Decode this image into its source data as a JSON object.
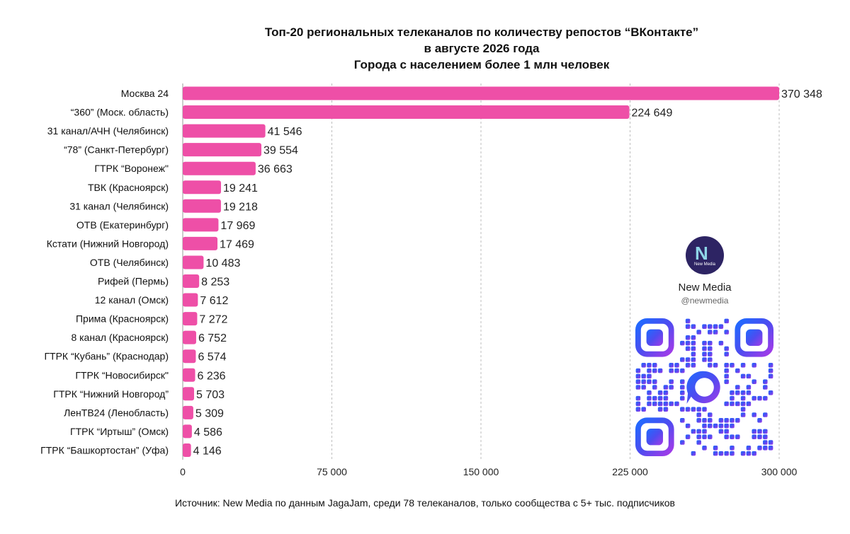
{
  "title_lines": [
    "Топ-20 региональных телеканалов по количеству репостов “ВКонтакте”",
    "в августе 2026 года",
    "Города с населением более 1 млн человек"
  ],
  "source": "Источник: New Media по данным JagaJam, среди 78 телеканалов, только сообщества с 5+ тыс. подписчиков",
  "brand": {
    "name": "New Media",
    "handle": "@newmedia",
    "logo_text": "New Media"
  },
  "colors": {
    "bar": "#ee4fa7",
    "grid": "#bdbdbd",
    "text": "#111111"
  },
  "chart_data": {
    "type": "bar",
    "orientation": "horizontal",
    "categories": [
      "Москва 24",
      "“360” (Моск. область)",
      "31 канал/АЧН (Челябинск)",
      "“78” (Санкт-Петербург)",
      "ГТРК “Воронеж\"",
      "ТВК (Красноярск)",
      "31 канал (Челябинск)",
      "ОТВ (Екатеринбург)",
      "Кстати (Нижний Новгород)",
      "ОТВ (Челябинск)",
      "Рифей (Пермь)",
      "12 канал (Омск)",
      "Прима (Красноярск)",
      "8 канал (Красноярск)",
      "ГТРК “Кубань” (Краснодар)",
      "ГТРК “Новосибирск\"",
      "ГТРК “Нижний Новгород”",
      "ЛенТВ24 (Ленобласть)",
      "ГТРК “Иртыш” (Омск)",
      "ГТРК “Башкортостан” (Уфа)"
    ],
    "values": [
      370348,
      224649,
      41546,
      39554,
      36663,
      19241,
      19218,
      17969,
      17469,
      10483,
      8253,
      7612,
      7272,
      6752,
      6574,
      6236,
      5703,
      5309,
      4586,
      4146
    ],
    "value_labels": [
      "370 348",
      "224 649",
      "41 546",
      "39 554",
      "36 663",
      "19 241",
      "19 218",
      "17 969",
      "17 469",
      "10 483",
      "8 253",
      "7 612",
      "7 272",
      "6 752",
      "6 574",
      "6 236",
      "5 703",
      "5 309",
      "4 586",
      "4 146"
    ],
    "x_ticks": [
      0,
      75000,
      150000,
      225000,
      300000
    ],
    "x_tick_labels": [
      "0",
      "75 000",
      "150 000",
      "225 000",
      "300 000"
    ],
    "xlim": [
      0,
      300000
    ],
    "grid": true
  }
}
